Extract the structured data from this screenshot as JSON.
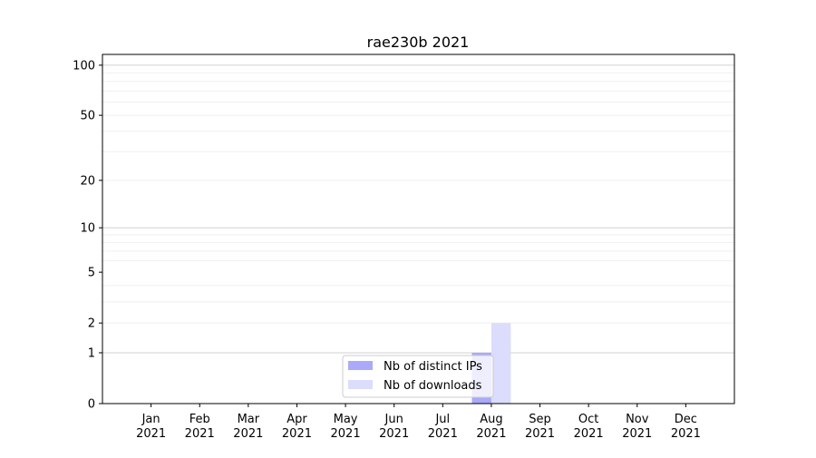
{
  "chart_data": {
    "type": "bar",
    "title": "rae230b 2021",
    "xlabel": "",
    "ylabel": "",
    "categories": [
      "Jan\n2021",
      "Feb\n2021",
      "Mar\n2021",
      "Apr\n2021",
      "May\n2021",
      "Jun\n2021",
      "Jul\n2021",
      "Aug\n2021",
      "Sep\n2021",
      "Oct\n2021",
      "Nov\n2021",
      "Dec\n2021"
    ],
    "series": [
      {
        "name": "Nb of distinct IPs",
        "color": "#aaaaf8",
        "values": [
          0,
          0,
          0,
          0,
          0,
          0,
          0,
          1,
          0,
          0,
          0,
          0
        ]
      },
      {
        "name": "Nb of downloads",
        "color": "#dcdcfc",
        "values": [
          0,
          0,
          0,
          0,
          0,
          0,
          0,
          2,
          0,
          0,
          0,
          0
        ]
      }
    ],
    "yscale": "log(y+1)",
    "yticks": [
      0,
      1,
      2,
      5,
      10,
      20,
      50,
      100
    ],
    "ylim": [
      0,
      116
    ],
    "grid": "y major and minor",
    "legend": "lower-center"
  }
}
